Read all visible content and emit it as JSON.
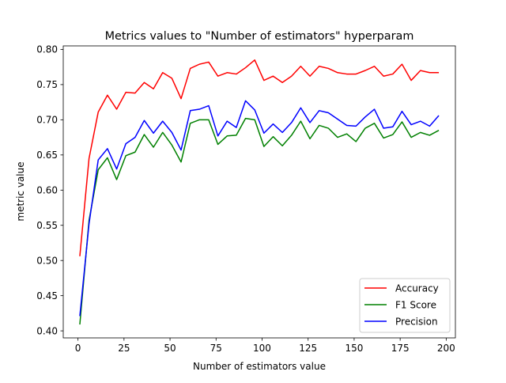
{
  "chart_data": {
    "type": "line",
    "title": "Metrics values to \"Number of estimators\" hyperparam",
    "xlabel": "Number of estimators value",
    "ylabel": "metric value",
    "xlim": [
      -8,
      205
    ],
    "ylim": [
      0.39,
      0.805
    ],
    "xticks": [
      0,
      25,
      50,
      75,
      100,
      125,
      150,
      175,
      200
    ],
    "xtick_labels": [
      "0",
      "25",
      "50",
      "75",
      "100",
      "125",
      "150",
      "175",
      "200"
    ],
    "yticks": [
      0.4,
      0.45,
      0.5,
      0.55,
      0.6,
      0.65,
      0.7,
      0.75,
      0.8
    ],
    "ytick_labels": [
      "0.40",
      "0.45",
      "0.50",
      "0.55",
      "0.60",
      "0.65",
      "0.70",
      "0.75",
      "0.80"
    ],
    "grid": false,
    "legend_position": "lower-right",
    "x": [
      1,
      6,
      11,
      16,
      21,
      26,
      31,
      36,
      41,
      46,
      51,
      56,
      61,
      66,
      71,
      76,
      81,
      86,
      91,
      96,
      101,
      106,
      111,
      116,
      121,
      126,
      131,
      136,
      141,
      146,
      151,
      156,
      161,
      166,
      171,
      176,
      181,
      186,
      191,
      196
    ],
    "series": [
      {
        "name": "Accuracy",
        "color": "#ff0000",
        "values": [
          0.506,
          0.645,
          0.711,
          0.735,
          0.715,
          0.739,
          0.738,
          0.753,
          0.744,
          0.767,
          0.759,
          0.73,
          0.773,
          0.779,
          0.782,
          0.762,
          0.767,
          0.765,
          0.774,
          0.785,
          0.756,
          0.762,
          0.753,
          0.762,
          0.776,
          0.762,
          0.776,
          0.773,
          0.767,
          0.765,
          0.765,
          0.77,
          0.776,
          0.762,
          0.765,
          0.779,
          0.756,
          0.77,
          0.767,
          0.767
        ]
      },
      {
        "name": "F1 Score",
        "color": "#008000",
        "values": [
          0.409,
          0.557,
          0.629,
          0.646,
          0.615,
          0.649,
          0.654,
          0.679,
          0.661,
          0.682,
          0.664,
          0.64,
          0.695,
          0.7,
          0.7,
          0.665,
          0.677,
          0.678,
          0.702,
          0.7,
          0.662,
          0.676,
          0.663,
          0.678,
          0.698,
          0.673,
          0.692,
          0.688,
          0.675,
          0.68,
          0.669,
          0.688,
          0.695,
          0.674,
          0.679,
          0.697,
          0.675,
          0.682,
          0.678,
          0.685
        ]
      },
      {
        "name": "Precision",
        "color": "#0000ff",
        "values": [
          0.421,
          0.552,
          0.643,
          0.659,
          0.63,
          0.666,
          0.675,
          0.699,
          0.681,
          0.698,
          0.682,
          0.657,
          0.713,
          0.715,
          0.72,
          0.677,
          0.698,
          0.689,
          0.727,
          0.714,
          0.681,
          0.694,
          0.682,
          0.696,
          0.717,
          0.696,
          0.713,
          0.71,
          0.701,
          0.692,
          0.691,
          0.704,
          0.715,
          0.688,
          0.69,
          0.712,
          0.693,
          0.698,
          0.691,
          0.706
        ]
      }
    ]
  }
}
